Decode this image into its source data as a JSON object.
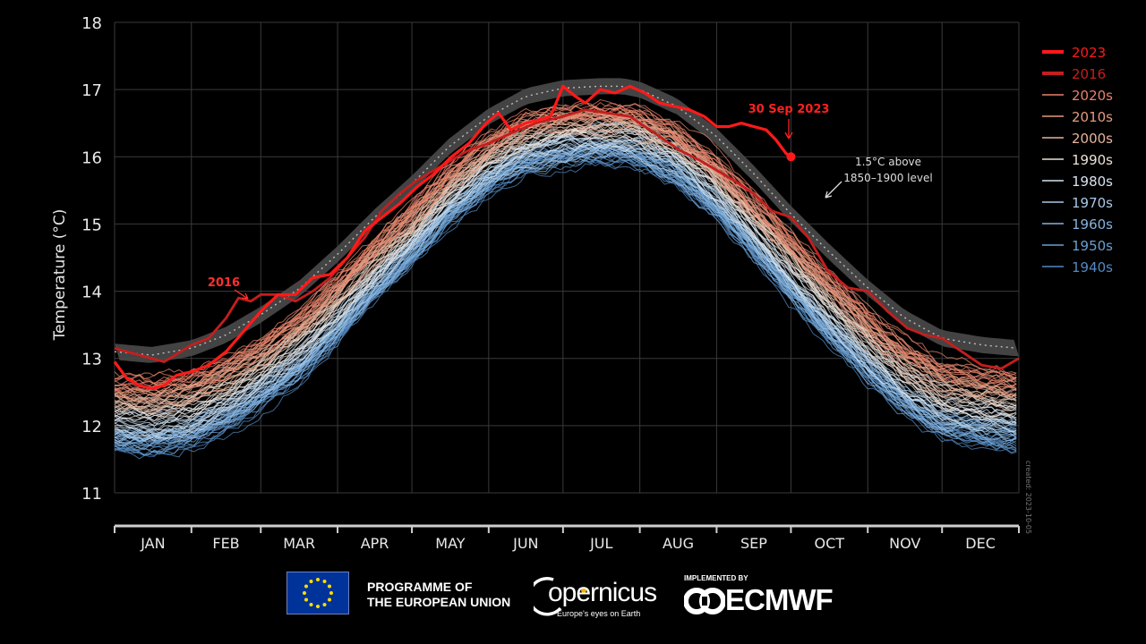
{
  "chart_data": {
    "type": "line",
    "title": "",
    "ylabel": "Temperature (°C)",
    "xlabel": "",
    "ylim": [
      11,
      18
    ],
    "yticks": [
      11,
      12,
      13,
      14,
      15,
      16,
      17,
      18
    ],
    "xlim": [
      0,
      365
    ],
    "months": [
      "JAN",
      "FEB",
      "MAR",
      "APR",
      "MAY",
      "JUN",
      "JUL",
      "AUG",
      "SEP",
      "OCT",
      "NOV",
      "DEC"
    ],
    "month_starts": [
      0,
      31,
      59,
      90,
      120,
      151,
      181,
      212,
      243,
      273,
      304,
      334,
      365
    ],
    "grid": true,
    "legend_position": "right",
    "legend": [
      {
        "label": "2023",
        "color": "#ff1a1a",
        "style": "thick"
      },
      {
        "label": "2016",
        "color": "#c41e1e",
        "style": "thick"
      },
      {
        "label": "2020s",
        "color": "#e8826a",
        "style": "thin"
      },
      {
        "label": "2010s",
        "color": "#e59a7f",
        "style": "thin"
      },
      {
        "label": "2000s",
        "color": "#e6b49c",
        "style": "thin"
      },
      {
        "label": "1990s",
        "color": "#ece0d6",
        "style": "thin"
      },
      {
        "label": "1980s",
        "color": "#d6e2ee",
        "style": "thin"
      },
      {
        "label": "1970s",
        "color": "#a9c9e6",
        "style": "thin"
      },
      {
        "label": "1960s",
        "color": "#86b3dd",
        "style": "thin"
      },
      {
        "label": "1950s",
        "color": "#6a9fd2",
        "style": "thin"
      },
      {
        "label": "1940s",
        "color": "#5389c3",
        "style": "thin"
      }
    ],
    "band_15c": {
      "label_lines": [
        "1.5°C above",
        "1850–1900 level"
      ],
      "x": [
        0,
        15,
        31,
        45,
        59,
        75,
        90,
        105,
        120,
        135,
        151,
        166,
        181,
        196,
        205,
        212,
        227,
        243,
        258,
        273,
        288,
        304,
        319,
        334,
        350,
        365
      ],
      "y": [
        13.1,
        13.05,
        13.15,
        13.35,
        13.65,
        14.05,
        14.55,
        15.1,
        15.6,
        16.15,
        16.6,
        16.9,
        17.02,
        17.05,
        17.05,
        17.0,
        16.75,
        16.3,
        15.75,
        15.15,
        14.6,
        14.05,
        13.6,
        13.3,
        13.2,
        13.15
      ]
    },
    "series": [
      {
        "name": "2023",
        "color": "#ff1a1a",
        "x": [
          0,
          5,
          10,
          15,
          20,
          25,
          31,
          38,
          45,
          52,
          59,
          66,
          73,
          80,
          87,
          94,
          101,
          108,
          115,
          122,
          129,
          136,
          143,
          150,
          155,
          160,
          166,
          171,
          176,
          181,
          186,
          190,
          196,
          202,
          208,
          214,
          220,
          226,
          232,
          238,
          243,
          248,
          253,
          258,
          263,
          267,
          271,
          273
        ],
        "y": [
          12.95,
          12.7,
          12.6,
          12.55,
          12.6,
          12.75,
          12.8,
          12.9,
          13.1,
          13.4,
          13.7,
          13.95,
          13.95,
          14.2,
          14.25,
          14.5,
          14.9,
          15.1,
          15.3,
          15.55,
          15.75,
          16.0,
          16.2,
          16.5,
          16.65,
          16.4,
          16.5,
          16.55,
          16.6,
          17.05,
          16.9,
          16.8,
          17.0,
          16.95,
          17.05,
          16.95,
          16.8,
          16.75,
          16.7,
          16.6,
          16.45,
          16.45,
          16.5,
          16.45,
          16.4,
          16.25,
          16.05,
          16.0
        ]
      },
      {
        "name": "2016",
        "color": "#c41e1e",
        "x": [
          0,
          10,
          20,
          31,
          38,
          45,
          50,
          55,
          59,
          66,
          73,
          80,
          87,
          94,
          101,
          108,
          115,
          122,
          129,
          136,
          143,
          151,
          160,
          170,
          181,
          190,
          199,
          208,
          212,
          220,
          228,
          236,
          243,
          250,
          258,
          265,
          273,
          280,
          288,
          296,
          304,
          312,
          320,
          327,
          334,
          342,
          350,
          358,
          365
        ],
        "y": [
          13.15,
          13.05,
          12.95,
          13.2,
          13.3,
          13.6,
          13.9,
          13.85,
          13.95,
          13.95,
          13.85,
          14.0,
          14.2,
          14.5,
          14.8,
          15.2,
          15.45,
          15.65,
          15.8,
          15.95,
          16.1,
          16.2,
          16.35,
          16.5,
          16.6,
          16.7,
          16.65,
          16.6,
          16.5,
          16.3,
          16.1,
          15.95,
          15.8,
          15.65,
          15.45,
          15.2,
          15.1,
          14.8,
          14.3,
          14.05,
          14.0,
          13.7,
          13.45,
          13.35,
          13.3,
          13.1,
          12.9,
          12.85,
          13.0
        ]
      }
    ],
    "decade_envelopes": [
      {
        "name": "2020s",
        "offset_low": 0.25,
        "offset_high": 0.05
      },
      {
        "name": "2010s",
        "offset_low": 0.15,
        "offset_high": -0.05
      },
      {
        "name": "2000s",
        "offset_low": 0.05,
        "offset_high": -0.15
      },
      {
        "name": "1990s",
        "offset_low": -0.05,
        "offset_high": -0.3
      },
      {
        "name": "1980s",
        "offset_low": -0.2,
        "offset_high": -0.45
      },
      {
        "name": "1970s",
        "offset_low": -0.35,
        "offset_high": -0.55
      },
      {
        "name": "1960s",
        "offset_low": -0.45,
        "offset_high": -0.65
      },
      {
        "name": "1950s",
        "offset_low": -0.5,
        "offset_high": -0.7
      },
      {
        "name": "1940s",
        "offset_low": -0.55,
        "offset_high": -0.75
      }
    ],
    "annotations": [
      {
        "id": "2016",
        "text": "2016",
        "x": 40,
        "y": 14.15,
        "color": "#ff3030"
      },
      {
        "id": "30sep",
        "text": "30 Sep 2023",
        "x": 266,
        "y": 16.68,
        "color": "#ff2020"
      },
      {
        "id": "band",
        "text_lines": [
          "1.5°C above",
          "1850–1900 level"
        ],
        "color": "#dddddd"
      }
    ],
    "created_note": "created: 2023-10-05"
  },
  "footer": {
    "eu_line1": "PROGRAMME OF",
    "eu_line2": "THE EUROPEAN UNION",
    "copernicus_name": "opernicus",
    "copernicus_tagline": "Europe's eyes on Earth",
    "implemented_by": "IMPLEMENTED BY",
    "ecmwf_name": "ECMWF"
  }
}
